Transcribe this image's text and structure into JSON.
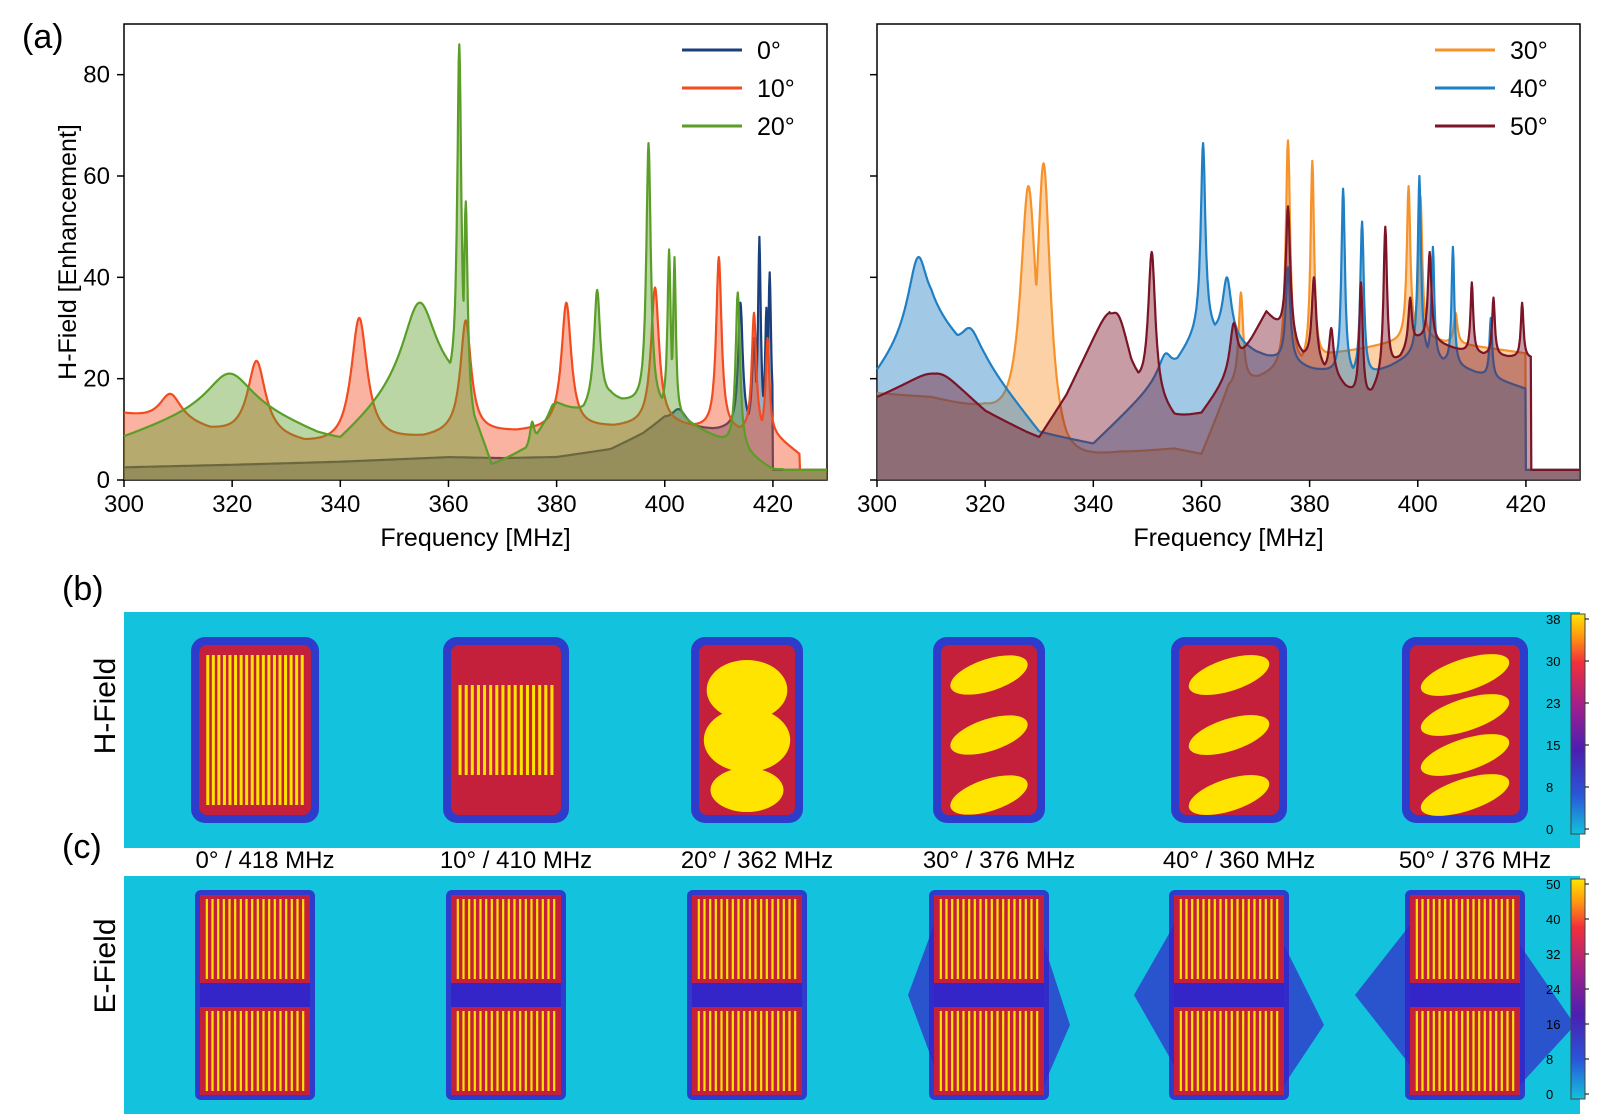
{
  "panel_labels": {
    "a": "(a)",
    "b": "(b)",
    "c": "(c)"
  },
  "field_labels": {
    "h": "H-Field",
    "e": "E-Field"
  },
  "captions": [
    "0° / 418 MHz",
    "10° / 410 MHz",
    "20° / 362 MHz",
    "30° / 376 MHz",
    "40° / 360 MHz",
    "50° / 376 MHz"
  ],
  "colorbar_h": {
    "ticks": [
      "38",
      "30",
      "23",
      "15",
      "8",
      "0"
    ]
  },
  "colorbar_e": {
    "ticks": [
      "50",
      "40",
      "32",
      "24",
      "16",
      "8",
      "0"
    ]
  },
  "colors": {
    "0": "#1a3f7a",
    "10": "#f24b1f",
    "20": "#5a9e28",
    "30": "#f7922a",
    "40": "#1f7fc4",
    "50": "#7a1426",
    "field_bg": "#13c2dc",
    "field_hot": "#ffe400",
    "field_mid": "#c4203c",
    "field_low": "#3325c8"
  },
  "chart_data": [
    {
      "type": "area",
      "title": "",
      "xlabel": "Frequency [MHz]",
      "ylabel": "H-Field [Enhancement]",
      "xlim": [
        300,
        430
      ],
      "ylim": [
        0,
        90
      ],
      "xticks": [
        300,
        320,
        340,
        360,
        380,
        400,
        420
      ],
      "yticks": [
        0,
        20,
        40,
        60,
        80
      ],
      "legend_position": "top-right",
      "series": [
        {
          "name": "0°",
          "cutoff": 420,
          "base": [
            [
              300,
              2.5
            ],
            [
              320,
              3
            ],
            [
              340,
              3.6
            ],
            [
              360,
              4.5
            ],
            [
              370,
              4.3
            ],
            [
              380,
              4.5
            ],
            [
              390,
              6
            ],
            [
              396,
              9
            ],
            [
              400,
              12
            ],
            [
              405,
              10
            ],
            [
              410,
              10
            ],
            [
              420,
              11
            ]
          ],
          "peaks": [
            [
              402.5,
              14,
              1.6
            ],
            [
              414,
              35,
              0.5
            ],
            [
              416.5,
              28,
              0.4
            ],
            [
              417.5,
              48,
              0.3
            ],
            [
              418.8,
              34,
              0.3
            ],
            [
              419.4,
              41,
              0.3
            ]
          ]
        },
        {
          "name": "10°",
          "cutoff": 425,
          "base": [
            [
              300,
              13
            ],
            [
              320,
              9
            ],
            [
              340,
              6.5
            ],
            [
              360,
              9
            ],
            [
              380,
              10
            ],
            [
              400,
              11
            ],
            [
              420,
              9
            ],
            [
              425,
              5
            ]
          ],
          "peaks": [
            [
              308.5,
              17,
              2.5
            ],
            [
              324.5,
              23.5,
              2
            ],
            [
              343.5,
              32,
              1.8
            ],
            [
              363.2,
              31.5,
              1.2
            ],
            [
              381.8,
              35,
              1.1
            ],
            [
              398.2,
              38,
              0.9
            ],
            [
              410,
              44,
              0.6
            ],
            [
              416.5,
              33,
              0.5
            ],
            [
              419,
              28,
              0.4
            ]
          ]
        },
        {
          "name": "20°",
          "cutoff": 422,
          "base": [
            [
              300,
              8
            ],
            [
              320,
              15
            ],
            [
              340,
              7
            ],
            [
              355,
              20
            ],
            [
              362,
              18
            ],
            [
              368,
              1
            ],
            [
              375,
              6
            ],
            [
              380,
              15
            ],
            [
              385,
              13
            ],
            [
              390,
              16
            ],
            [
              400,
              14
            ],
            [
              410,
              8
            ],
            [
              420,
              2
            ]
          ],
          "peaks": [
            [
              319.5,
              21,
              4.5
            ],
            [
              354.7,
              35,
              3.5
            ],
            [
              362,
              86,
              0.45
            ],
            [
              363.2,
              55,
              0.4
            ],
            [
              375.5,
              11.5,
              0.5
            ],
            [
              379.5,
              15,
              0.6
            ],
            [
              387.5,
              37.5,
              0.7
            ],
            [
              397,
              66.5,
              0.5
            ],
            [
              400.8,
              45.5,
              0.35
            ],
            [
              401.8,
              44,
              0.3
            ],
            [
              413.5,
              37,
              0.5
            ]
          ]
        }
      ]
    },
    {
      "type": "area",
      "title": "",
      "xlabel": "Frequency [MHz]",
      "ylabel": "",
      "xlim": [
        300,
        430
      ],
      "ylim": [
        0,
        90
      ],
      "xticks": [
        300,
        320,
        340,
        360,
        380,
        400,
        420
      ],
      "yticks": [
        0,
        20,
        40,
        60,
        80
      ],
      "legend_position": "top-right",
      "series": [
        {
          "name": "30°",
          "cutoff": 420,
          "base": [
            [
              300,
              17
            ],
            [
              310,
              16
            ],
            [
              320,
              13
            ],
            [
              335,
              3
            ],
            [
              345,
              5
            ],
            [
              355,
              6
            ],
            [
              360,
              5
            ],
            [
              365,
              18
            ],
            [
              370,
              20
            ],
            [
              385,
              25
            ],
            [
              400,
              28
            ],
            [
              420,
              25
            ]
          ],
          "peaks": [
            [
              328,
              58,
              1.8
            ],
            [
              330.8,
              62.5,
              1.5
            ],
            [
              367.3,
              37,
              0.5
            ],
            [
              376,
              67,
              0.5
            ],
            [
              380.5,
              63,
              0.4
            ],
            [
              398.3,
              58,
              0.4
            ],
            [
              400.5,
              56,
              0.4
            ],
            [
              407,
              33,
              0.4
            ]
          ]
        },
        {
          "name": "40°",
          "cutoff": 420,
          "base": [
            [
              300,
              20
            ],
            [
              310,
              32
            ],
            [
              320,
              22
            ],
            [
              330,
              9
            ],
            [
              340,
              7
            ],
            [
              353,
              20
            ],
            [
              360,
              30
            ],
            [
              370,
              25
            ],
            [
              380,
              22
            ],
            [
              390,
              20
            ],
            [
              400,
              25
            ],
            [
              420,
              18
            ]
          ],
          "peaks": [
            [
              307.7,
              44,
              2.2
            ],
            [
              317,
              30,
              2.2
            ],
            [
              353.5,
              25,
              1.5
            ],
            [
              360.3,
              66.5,
              0.5
            ],
            [
              364.7,
              40,
              1
            ],
            [
              376,
              42,
              0.5
            ],
            [
              386.2,
              57.5,
              0.4
            ],
            [
              389.7,
              51,
              0.4
            ],
            [
              400.3,
              60,
              0.35
            ],
            [
              402.8,
              46,
              0.3
            ],
            [
              406.5,
              46,
              0.3
            ],
            [
              413.5,
              32,
              0.3
            ]
          ]
        },
        {
          "name": "50°",
          "cutoff": 421,
          "base": [
            [
              300,
              16
            ],
            [
              311,
              21
            ],
            [
              320,
              13
            ],
            [
              330,
              8
            ],
            [
              335,
              16
            ],
            [
              343,
              33
            ],
            [
              347,
              20
            ],
            [
              355,
              12
            ],
            [
              360,
              13
            ],
            [
              365,
              20
            ],
            [
              372,
              33
            ],
            [
              378,
              25
            ],
            [
              385,
              20
            ],
            [
              390,
              15
            ],
            [
              395,
              22
            ],
            [
              400,
              28
            ],
            [
              410,
              25
            ],
            [
              420,
              24
            ]
          ],
          "peaks": [
            [
              310.5,
              21,
              3
            ],
            [
              344,
              33,
              2
            ],
            [
              350.8,
              45,
              0.8
            ],
            [
              366,
              31,
              0.8
            ],
            [
              376,
              54,
              0.5
            ],
            [
              380.8,
              40,
              0.5
            ],
            [
              384,
              30,
              0.5
            ],
            [
              389.5,
              39,
              0.4
            ],
            [
              394,
              50,
              0.4
            ],
            [
              398.6,
              36,
              0.4
            ],
            [
              402.2,
              45,
              0.4
            ],
            [
              410,
              39,
              0.3
            ],
            [
              414,
              36,
              0.3
            ],
            [
              419.3,
              35,
              0.3
            ]
          ]
        }
      ]
    }
  ]
}
